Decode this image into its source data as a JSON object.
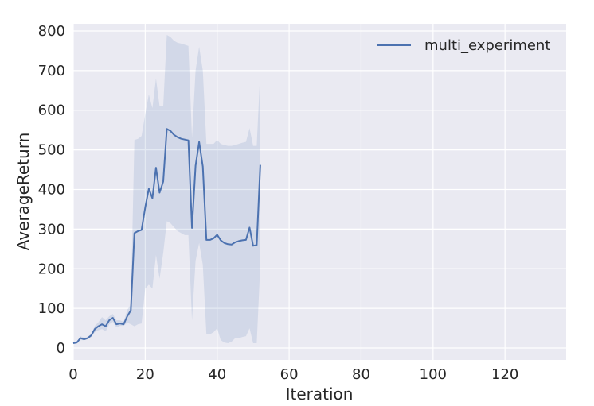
{
  "chart_data": {
    "type": "line",
    "xlabel": "Iteration",
    "ylabel": "AverageReturn",
    "xlim": [
      0,
      137
    ],
    "ylim": [
      -30,
      818
    ],
    "xticks": [
      0,
      20,
      40,
      60,
      80,
      100,
      120
    ],
    "yticks": [
      0,
      100,
      200,
      300,
      400,
      500,
      600,
      700,
      800
    ],
    "grid": true,
    "legend_position": "top-right",
    "colors": {
      "background": "#eaeaf2",
      "grid": "#ffffff",
      "line": "#4c72b0",
      "band": "#4c72b0"
    },
    "series": [
      {
        "name": "multi_experiment",
        "x": [
          0,
          1,
          2,
          3,
          4,
          5,
          6,
          7,
          8,
          9,
          10,
          11,
          12,
          13,
          14,
          15,
          16,
          17,
          18,
          19,
          20,
          21,
          22,
          23,
          24,
          25,
          26,
          27,
          28,
          29,
          30,
          31,
          32,
          33,
          34,
          35,
          36,
          37,
          38,
          39,
          40,
          41,
          42,
          43,
          44,
          45,
          46,
          47,
          48,
          49,
          50,
          51,
          52
        ],
        "y": [
          12,
          14,
          25,
          22,
          25,
          32,
          48,
          55,
          60,
          55,
          70,
          76,
          60,
          62,
          60,
          80,
          95,
          290,
          295,
          298,
          355,
          402,
          378,
          455,
          392,
          420,
          553,
          548,
          538,
          532,
          528,
          526,
          524,
          303,
          460,
          520,
          458,
          273,
          273,
          277,
          286,
          272,
          265,
          262,
          261,
          267,
          270,
          272,
          273,
          304,
          258,
          260,
          462
        ],
        "y_lower": [
          10,
          12,
          20,
          20,
          22,
          28,
          40,
          45,
          48,
          42,
          60,
          66,
          52,
          56,
          56,
          64,
          60,
          55,
          60,
          62,
          150,
          160,
          150,
          235,
          175,
          240,
          320,
          315,
          305,
          295,
          290,
          285,
          285,
          70,
          220,
          265,
          210,
          35,
          35,
          40,
          50,
          20,
          14,
          12,
          16,
          25,
          25,
          28,
          30,
          50,
          12,
          12,
          210
        ],
        "y_upper": [
          14,
          16,
          30,
          26,
          28,
          36,
          56,
          65,
          78,
          70,
          80,
          86,
          70,
          70,
          66,
          96,
          110,
          525,
          528,
          535,
          590,
          640,
          605,
          680,
          610,
          610,
          790,
          785,
          775,
          770,
          768,
          765,
          762,
          530,
          700,
          760,
          700,
          515,
          515,
          515,
          525,
          515,
          512,
          510,
          510,
          512,
          515,
          518,
          520,
          555,
          510,
          510,
          700
        ]
      }
    ]
  }
}
